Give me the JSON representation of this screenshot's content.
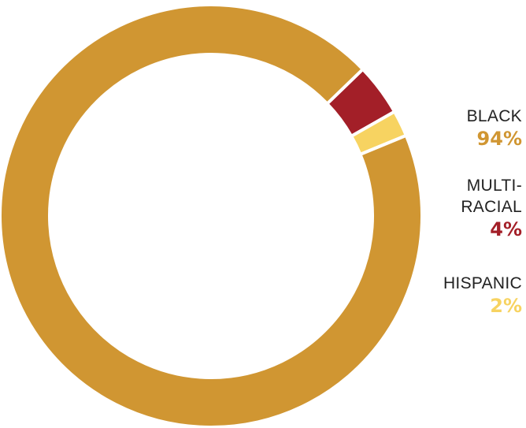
{
  "chart_data": {
    "type": "pie",
    "title": "",
    "slices": [
      {
        "label": "BLACK",
        "value": 94,
        "value_text": "94%",
        "color": "#D09632"
      },
      {
        "label": "MULTI-\nRACIAL",
        "value": 4,
        "value_text": "4%",
        "color": "#A31F28"
      },
      {
        "label": "HISPANIC",
        "value": 2,
        "value_text": "2%",
        "color": "#F7D361"
      }
    ],
    "legend_position": "right"
  }
}
